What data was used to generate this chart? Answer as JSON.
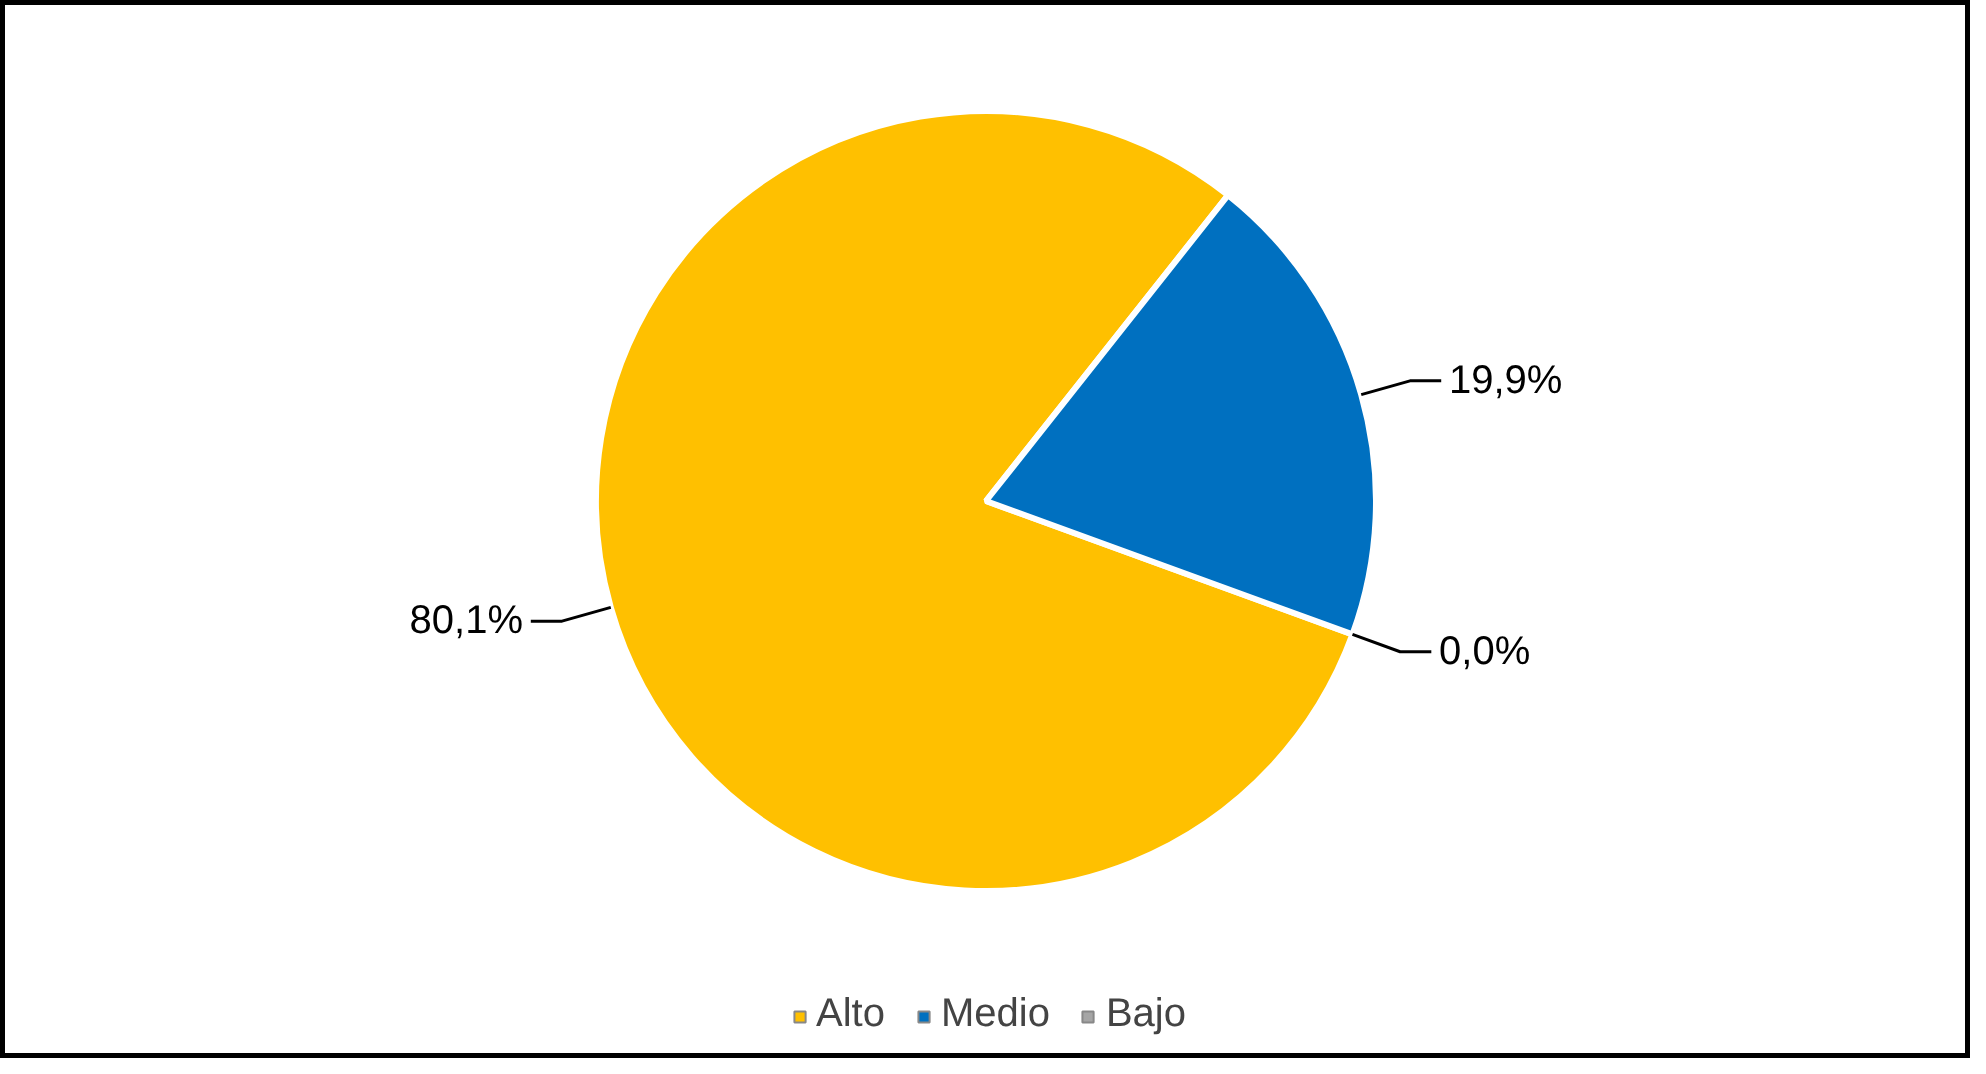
{
  "chart_data": {
    "type": "pie",
    "categories": [
      "Alto",
      "Medio",
      "Bajo"
    ],
    "values": [
      80.1,
      19.9,
      0.0
    ],
    "colors": [
      "#ffc000",
      "#0070c0",
      "#a5a5a5"
    ],
    "value_labels": [
      "80,1%",
      "19,9%",
      "0,0%"
    ],
    "legend": "bottom"
  }
}
